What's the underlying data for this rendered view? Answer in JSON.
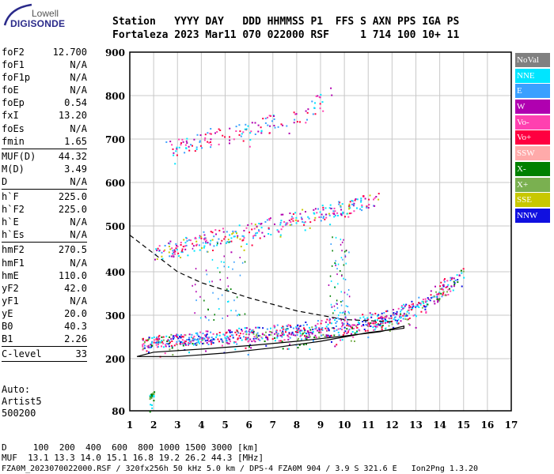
{
  "logo": {
    "top": "Lowell",
    "bottom": "DIGISONDE"
  },
  "header": {
    "line1": "Station   YYYY DAY   DDD HHMMSS P1  FFS S AXN PPS IGA PS",
    "line2": "Fortaleza 2023 Mar11 070 022000 RSF     1 714 100 10+ 11"
  },
  "params": [
    {
      "name": "foF2",
      "value": "12.700"
    },
    {
      "name": "foF1",
      "value": "N/A"
    },
    {
      "name": "foF1p",
      "value": "N/A"
    },
    {
      "name": "foE",
      "value": "N/A"
    },
    {
      "name": "foEp",
      "value": "0.54"
    },
    {
      "name": "fxI",
      "value": "13.20"
    },
    {
      "name": "foEs",
      "value": "N/A"
    },
    {
      "name": "fmin",
      "value": "1.65"
    },
    {
      "sep": true
    },
    {
      "name": "MUF(D)",
      "value": "44.32"
    },
    {
      "name": "M(D)",
      "value": "3.49"
    },
    {
      "name": "D",
      "value": "N/A"
    },
    {
      "sep": true
    },
    {
      "name": "h`F",
      "value": "225.0"
    },
    {
      "name": "h`F2",
      "value": "225.0"
    },
    {
      "name": "h`E",
      "value": "N/A"
    },
    {
      "name": "h`Es",
      "value": "N/A"
    },
    {
      "sep": true
    },
    {
      "name": "hmF2",
      "value": "270.5"
    },
    {
      "name": "hmF1",
      "value": "N/A"
    },
    {
      "name": "hmE",
      "value": "110.0"
    },
    {
      "name": "yF2",
      "value": "42.0"
    },
    {
      "name": "yF1",
      "value": "N/A"
    },
    {
      "name": "yE",
      "value": "20.0"
    },
    {
      "name": "B0",
      "value": "40.3"
    },
    {
      "name": "B1",
      "value": "2.26"
    },
    {
      "sep": true
    },
    {
      "name": "C-level",
      "value": "33"
    },
    {
      "sep": true
    }
  ],
  "auto": {
    "line1": "Auto:",
    "line2": "Artist5",
    "line3": "500200"
  },
  "legend": [
    {
      "label": "NoVal",
      "color": "#808080"
    },
    {
      "label": "NNE",
      "color": "#00e5ff"
    },
    {
      "label": "E",
      "color": "#3aa0ff"
    },
    {
      "label": "W",
      "color": "#b000b0"
    },
    {
      "label": "Vo-",
      "color": "#ff40b0"
    },
    {
      "label": "Vo+",
      "color": "#ff0040"
    },
    {
      "label": "SSW",
      "color": "#ffaaaa"
    },
    {
      "label": "X-",
      "color": "#008000"
    },
    {
      "label": "X+",
      "color": "#7ab050"
    },
    {
      "label": "SSE",
      "color": "#c8c800"
    },
    {
      "label": "NNW",
      "color": "#1010e0"
    }
  ],
  "footer": {
    "line1": "D     100  200  400  600  800 1000 1500 3000 [km]",
    "line2": "MUF  13.1 13.3 14.0 15.1 16.8 19.2 26.2 44.3 [MHz]",
    "line3": "FZA0M_2023070022000.RSF / 320fx256h 50 kHz 5.0 km / DPS-4 FZA0M 904 / 3.9 S 321.6 E   Ion2Png 1.3.20"
  },
  "chart_data": {
    "type": "scatter",
    "x_ticks": [
      "1",
      "2",
      "3",
      "4",
      "5",
      "6",
      "7",
      "8",
      "9",
      "10",
      "11",
      "12",
      "13",
      "14",
      "15",
      "16",
      "17"
    ],
    "y_ticks": [
      "80",
      "200",
      "300",
      "400",
      "500",
      "600",
      "700",
      "800",
      "900"
    ],
    "xlim": [
      1,
      17
    ],
    "y_axis": "virtual height, piecewise scale",
    "grid": true,
    "legend_position": "right",
    "traces": [
      {
        "label": "O-trace F2",
        "points": [
          [
            1.5,
            235
          ],
          [
            3,
            245
          ],
          [
            5,
            250
          ],
          [
            7,
            255
          ],
          [
            9,
            262
          ],
          [
            11,
            275
          ],
          [
            12.5,
            300
          ],
          [
            13.5,
            330
          ],
          [
            14.5,
            370
          ],
          [
            15,
            410
          ]
        ]
      },
      {
        "label": "X-trace F2",
        "points": [
          [
            2,
            240
          ],
          [
            4,
            250
          ],
          [
            6,
            260
          ],
          [
            8,
            270
          ],
          [
            10,
            285
          ],
          [
            12,
            300
          ],
          [
            13.5,
            340
          ],
          [
            14.5,
            390
          ]
        ]
      },
      {
        "label": "2nd hop",
        "points": [
          [
            2,
            440
          ],
          [
            4,
            470
          ],
          [
            6,
            490
          ],
          [
            8,
            520
          ],
          [
            10,
            545
          ],
          [
            11.5,
            565
          ]
        ]
      },
      {
        "label": "3rd hop",
        "points": [
          [
            2.5,
            680
          ],
          [
            4,
            700
          ],
          [
            6,
            720
          ],
          [
            8,
            755
          ],
          [
            9.5,
            800
          ]
        ]
      },
      {
        "label": "Es low",
        "points": [
          [
            1.8,
            110
          ],
          [
            2,
            120
          ]
        ]
      }
    ],
    "profile_solid": [
      [
        1.3,
        205
      ],
      [
        2,
        215
      ],
      [
        4,
        222
      ],
      [
        6,
        230
      ],
      [
        8,
        240
      ],
      [
        10,
        252
      ],
      [
        11.5,
        262
      ],
      [
        12.5,
        275
      ],
      [
        12.5,
        270
      ],
      [
        11,
        260
      ],
      [
        9,
        240
      ],
      [
        7,
        225
      ],
      [
        5,
        213
      ],
      [
        3,
        205
      ],
      [
        1.3,
        205
      ]
    ],
    "profile_dashed": [
      [
        1,
        480
      ],
      [
        2,
        440
      ],
      [
        3,
        400
      ],
      [
        4,
        375
      ],
      [
        6,
        340
      ],
      [
        8,
        310
      ],
      [
        10,
        290
      ],
      [
        12,
        285
      ]
    ]
  }
}
